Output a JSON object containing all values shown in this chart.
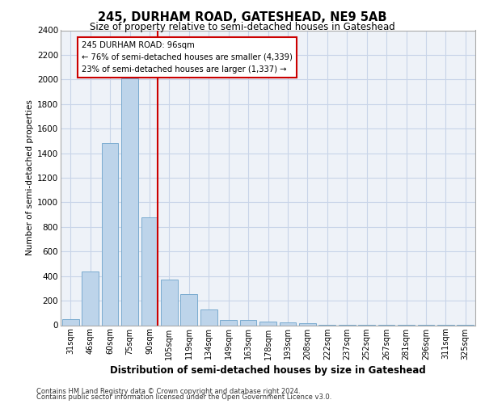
{
  "title1": "245, DURHAM ROAD, GATESHEAD, NE9 5AB",
  "title2": "Size of property relative to semi-detached houses in Gateshead",
  "xlabel": "Distribution of semi-detached houses by size in Gateshead",
  "ylabel": "Number of semi-detached properties",
  "bar_labels": [
    "31sqm",
    "46sqm",
    "60sqm",
    "75sqm",
    "90sqm",
    "105sqm",
    "119sqm",
    "134sqm",
    "149sqm",
    "163sqm",
    "178sqm",
    "193sqm",
    "208sqm",
    "222sqm",
    "237sqm",
    "252sqm",
    "267sqm",
    "281sqm",
    "296sqm",
    "311sqm",
    "325sqm"
  ],
  "bar_values": [
    50,
    440,
    1480,
    2010,
    880,
    370,
    255,
    130,
    45,
    45,
    30,
    20,
    15,
    5,
    5,
    2,
    2,
    1,
    1,
    1,
    1
  ],
  "bar_color": "#bdd4ea",
  "bar_edge_color": "#7aabcf",
  "property_label": "245 DURHAM ROAD: 96sqm",
  "pct_smaller": 76,
  "n_smaller": 4339,
  "pct_larger": 23,
  "n_larger": 1337,
  "vline_color": "#cc0000",
  "ylim": [
    0,
    2400
  ],
  "yticks": [
    0,
    200,
    400,
    600,
    800,
    1000,
    1200,
    1400,
    1600,
    1800,
    2000,
    2200,
    2400
  ],
  "grid_color": "#c8d4e8",
  "bg_color": "#eef2f8",
  "footer1": "Contains HM Land Registry data © Crown copyright and database right 2024.",
  "footer2": "Contains public sector information licensed under the Open Government Licence v3.0."
}
